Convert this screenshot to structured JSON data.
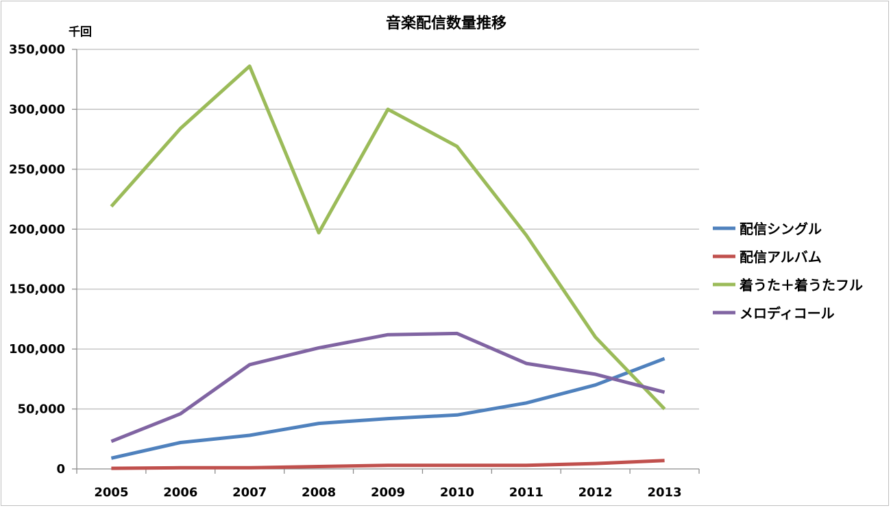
{
  "chart_data": {
    "type": "line",
    "title": "音楽配信数量推移",
    "ylabel": "千回",
    "xlabel": "",
    "ylim": [
      0,
      350000
    ],
    "yticks": [
      0,
      50000,
      100000,
      150000,
      200000,
      250000,
      300000,
      350000
    ],
    "ytick_labels": [
      "0",
      "50,000",
      "100,000",
      "150,000",
      "200,000",
      "250,000",
      "300,000",
      "350,000"
    ],
    "categories": [
      "2005",
      "2006",
      "2007",
      "2008",
      "2009",
      "2010",
      "2011",
      "2012",
      "2013"
    ],
    "grid": true,
    "legend_position": "right",
    "series": [
      {
        "name": "配信シングル",
        "color": "#4f81bd",
        "values": [
          9000,
          22000,
          28000,
          38000,
          42000,
          45000,
          55000,
          70000,
          92000
        ]
      },
      {
        "name": "配信アルバム",
        "color": "#c0504d",
        "values": [
          500,
          1000,
          1000,
          2000,
          3000,
          3000,
          3000,
          4500,
          7000
        ]
      },
      {
        "name": "着うた＋着うたフル",
        "color": "#9bbb59",
        "values": [
          219000,
          284000,
          336000,
          197000,
          300000,
          269000,
          195000,
          110000,
          50000
        ]
      },
      {
        "name": "メロディコール",
        "color": "#8064a2",
        "values": [
          23000,
          46000,
          87000,
          101000,
          112000,
          113000,
          88000,
          79000,
          64000
        ]
      }
    ]
  }
}
